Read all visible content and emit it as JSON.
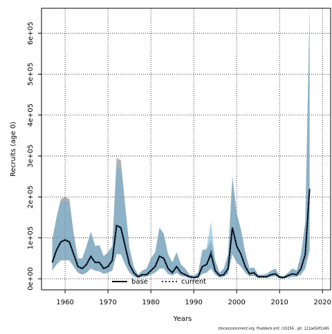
{
  "chart_data": {
    "type": "band-line",
    "x_label": "Years",
    "y_label": "Recruits (age 0)",
    "footer": "stockassessment.org, fhaddock-jmf, r10256 , git: 121ae5df1d45",
    "xlim": [
      1954.5,
      2021.9
    ],
    "ylim": [
      -27000,
      661000
    ],
    "xticks": [
      1960,
      1970,
      1980,
      1990,
      2000,
      2010,
      2020
    ],
    "yticks": [
      {
        "value": 0,
        "label": "0e+00"
      },
      {
        "value": 100000,
        "label": "1e+05"
      },
      {
        "value": 200000,
        "label": "2e+05"
      },
      {
        "value": 300000,
        "label": "3e+05"
      },
      {
        "value": 400000,
        "label": "4e+05"
      },
      {
        "value": 500000,
        "label": "5e+05"
      },
      {
        "value": 600000,
        "label": "6e+05"
      }
    ],
    "grid": true,
    "legend": "bottom",
    "x": [
      1957,
      1958,
      1959,
      1960,
      1961,
      1962,
      1963,
      1964,
      1965,
      1966,
      1967,
      1968,
      1969,
      1970,
      1971,
      1972,
      1973,
      1974,
      1975,
      1976,
      1977,
      1978,
      1979,
      1980,
      1981,
      1982,
      1983,
      1984,
      1985,
      1986,
      1987,
      1988,
      1989,
      1990,
      1991,
      1992,
      1993,
      1994,
      1995,
      1996,
      1997,
      1998,
      1999,
      2000,
      2001,
      2002,
      2003,
      2004,
      2005,
      2006,
      2007,
      2008,
      2009,
      2010,
      2011,
      2012,
      2013,
      2014,
      2015,
      2016,
      2017
    ],
    "series": [
      {
        "name": "base",
        "color": "#000000",
        "dash": false,
        "band_color": "rgba(128,128,128,0.6)",
        "values": [
          40000,
          70000,
          90000,
          95000,
          90000,
          60000,
          30000,
          25000,
          35000,
          55000,
          40000,
          40000,
          25000,
          30000,
          45000,
          130000,
          125000,
          80000,
          35000,
          15000,
          5000,
          10000,
          10000,
          20000,
          30000,
          55000,
          50000,
          25000,
          15000,
          30000,
          15000,
          10000,
          5000,
          3000,
          5000,
          30000,
          35000,
          60000,
          20000,
          8000,
          10000,
          25000,
          125000,
          80000,
          60000,
          30000,
          12000,
          15000,
          5000,
          5000,
          5000,
          10000,
          12000,
          4000,
          3000,
          8000,
          12000,
          10000,
          25000,
          60000,
          220000
        ],
        "lower": [
          20000,
          35000,
          45000,
          45000,
          45000,
          30000,
          15000,
          10000,
          15000,
          25000,
          20000,
          18000,
          12000,
          15000,
          20000,
          60000,
          60000,
          35000,
          15000,
          5000,
          2000,
          4000,
          5000,
          10000,
          15000,
          25000,
          25000,
          12000,
          8000,
          15000,
          7000,
          5000,
          2000,
          1000,
          2000,
          12000,
          15000,
          25000,
          10000,
          3000,
          5000,
          12000,
          60000,
          40000,
          30000,
          15000,
          6000,
          7000,
          2000,
          2000,
          2000,
          5000,
          6000,
          1000,
          1000,
          3000,
          5000,
          5000,
          10000,
          25000,
          70000
        ],
        "upper": [
          95000,
          150000,
          195000,
          200000,
          195000,
          110000,
          50000,
          50000,
          80000,
          115000,
          80000,
          82000,
          55000,
          65000,
          80000,
          295000,
          290000,
          180000,
          75000,
          30000,
          10000,
          20000,
          25000,
          50000,
          65000,
          125000,
          110000,
          60000,
          40000,
          65000,
          35000,
          25000,
          10000,
          8000,
          15000,
          70000,
          70000,
          95000,
          45000,
          15000,
          25000,
          60000,
          250000,
          160000,
          120000,
          65000,
          25000,
          28000,
          10000,
          10000,
          12000,
          20000,
          25000,
          8000,
          6000,
          15000,
          25000,
          20000,
          60000,
          140000,
          660000
        ]
      },
      {
        "name": "current",
        "color": "#0b2e4f",
        "dash": true,
        "band_color": "rgba(110,175,215,0.55)",
        "values": [
          40000,
          70000,
          90000,
          95000,
          90000,
          60000,
          30000,
          25000,
          35000,
          55000,
          40000,
          40000,
          25000,
          30000,
          45000,
          130000,
          125000,
          80000,
          35000,
          15000,
          5000,
          10000,
          10000,
          20000,
          30000,
          55000,
          50000,
          25000,
          15000,
          30000,
          15000,
          10000,
          5000,
          3000,
          5000,
          30000,
          35000,
          65000,
          20000,
          8000,
          10000,
          25000,
          125000,
          80000,
          60000,
          30000,
          12000,
          15000,
          5000,
          5000,
          5000,
          10000,
          12000,
          4000,
          3000,
          8000,
          12000,
          10000,
          25000,
          60000,
          220000
        ],
        "lower": [
          20000,
          35000,
          45000,
          45000,
          45000,
          30000,
          15000,
          10000,
          15000,
          25000,
          20000,
          18000,
          12000,
          15000,
          20000,
          60000,
          60000,
          35000,
          15000,
          5000,
          2000,
          4000,
          5000,
          10000,
          15000,
          25000,
          25000,
          12000,
          8000,
          15000,
          7000,
          5000,
          2000,
          1000,
          2000,
          12000,
          15000,
          25000,
          10000,
          3000,
          5000,
          12000,
          60000,
          40000,
          30000,
          15000,
          6000,
          7000,
          2000,
          2000,
          2000,
          5000,
          6000,
          1000,
          1000,
          3000,
          5000,
          5000,
          10000,
          25000,
          70000
        ],
        "upper": [
          95000,
          150000,
          190000,
          190000,
          190000,
          110000,
          50000,
          50000,
          80000,
          115000,
          80000,
          82000,
          55000,
          65000,
          80000,
          275000,
          270000,
          180000,
          75000,
          30000,
          10000,
          20000,
          25000,
          50000,
          65000,
          125000,
          110000,
          60000,
          40000,
          65000,
          35000,
          25000,
          10000,
          8000,
          15000,
          70000,
          75000,
          140000,
          45000,
          15000,
          25000,
          60000,
          250000,
          160000,
          120000,
          65000,
          25000,
          28000,
          10000,
          10000,
          12000,
          20000,
          25000,
          8000,
          6000,
          15000,
          25000,
          20000,
          60000,
          140000,
          660000
        ]
      }
    ]
  }
}
